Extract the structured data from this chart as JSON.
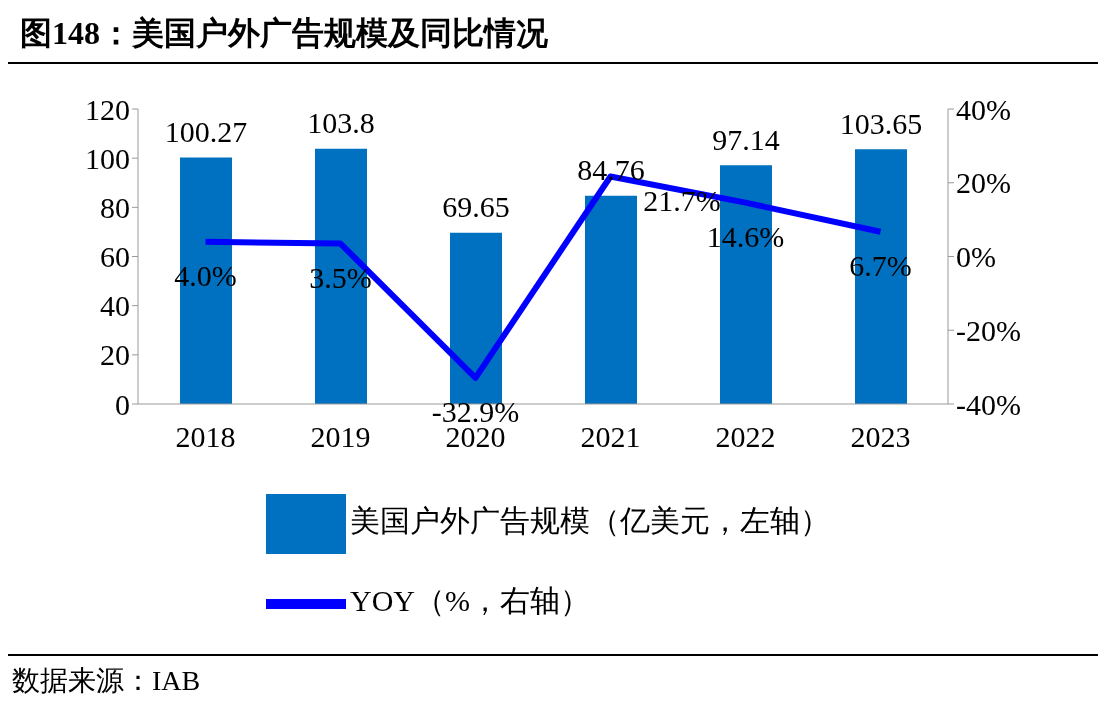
{
  "chart_data": {
    "type": "bar",
    "title": "图148：美国户外广告规模及同比情况",
    "categories": [
      "2018",
      "2019",
      "2020",
      "2021",
      "2022",
      "2023"
    ],
    "series": [
      {
        "name": "美国户外广告规模（亿美元，左轴）",
        "color": "#0070c0",
        "values": [
          100.27,
          103.8,
          69.65,
          84.76,
          97.14,
          103.65
        ],
        "value_labels": [
          "100.27",
          "103.8",
          "69.65",
          "84.76",
          "97.14",
          "103.65"
        ]
      },
      {
        "name": "YOY（%，右轴）",
        "type": "line",
        "axis": "y2",
        "color": "#0000ff",
        "values": [
          4.0,
          3.5,
          -32.9,
          21.7,
          14.6,
          6.7
        ],
        "value_labels": [
          "4.0%",
          "3.5%",
          "-32.9%",
          "21.7%",
          "14.6%",
          "6.7%"
        ]
      }
    ],
    "ylim": [
      0,
      120
    ],
    "yticks": [
      0,
      20,
      40,
      60,
      80,
      100,
      120
    ],
    "y2lim": [
      -40,
      40
    ],
    "y2ticks": [
      {
        "value": -40,
        "label": "-40%"
      },
      {
        "value": -20,
        "label": "-20%"
      },
      {
        "value": 0,
        "label": "0%"
      },
      {
        "value": 20,
        "label": "20%"
      },
      {
        "value": 40,
        "label": "40%"
      }
    ],
    "legend": "bottom",
    "marker": "none",
    "line_style": "solid",
    "annotations": [
      "数据来源：IAB"
    ]
  }
}
